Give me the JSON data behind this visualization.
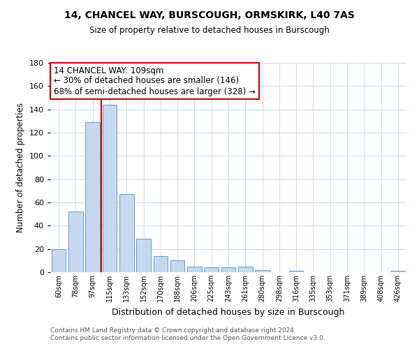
{
  "title": "14, CHANCEL WAY, BURSCOUGH, ORMSKIRK, L40 7AS",
  "subtitle": "Size of property relative to detached houses in Burscough",
  "xlabel": "Distribution of detached houses by size in Burscough",
  "ylabel": "Number of detached properties",
  "bar_labels": [
    "60sqm",
    "78sqm",
    "97sqm",
    "115sqm",
    "133sqm",
    "152sqm",
    "170sqm",
    "188sqm",
    "206sqm",
    "225sqm",
    "243sqm",
    "261sqm",
    "280sqm",
    "298sqm",
    "316sqm",
    "335sqm",
    "353sqm",
    "371sqm",
    "389sqm",
    "408sqm",
    "426sqm"
  ],
  "bar_values": [
    20,
    52,
    129,
    144,
    67,
    29,
    14,
    10,
    5,
    4,
    4,
    5,
    2,
    0,
    1,
    0,
    0,
    0,
    0,
    0,
    1
  ],
  "bar_color": "#c6d9f0",
  "bar_edge_color": "#5b9bd5",
  "vline_x_index": 3,
  "vline_color": "#cc0000",
  "ylim": [
    0,
    180
  ],
  "yticks": [
    0,
    20,
    40,
    60,
    80,
    100,
    120,
    140,
    160,
    180
  ],
  "annotation_text": "14 CHANCEL WAY: 109sqm\n← 30% of detached houses are smaller (146)\n68% of semi-detached houses are larger (328) →",
  "annotation_box_color": "#ffffff",
  "annotation_box_edge": "#cc0000",
  "footer_line1": "Contains HM Land Registry data © Crown copyright and database right 2024.",
  "footer_line2": "Contains public sector information licensed under the Open Government Licence v3.0.",
  "background_color": "#ffffff",
  "grid_color": "#ccdded"
}
